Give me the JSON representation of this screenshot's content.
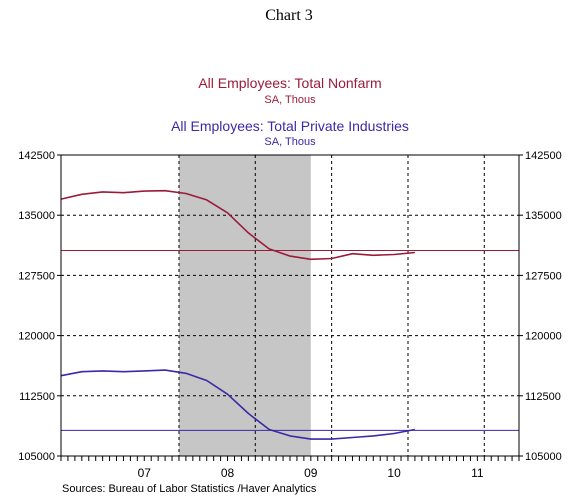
{
  "page_title": "Chart 3",
  "sources_text": "Sources:  Bureau of Labor Statistics /Haver Analytics",
  "chart_data": {
    "type": "line",
    "series": [
      {
        "name": "All Employees: Total Nonfarm",
        "units": "SA, Thous",
        "color": "#9b1c3a",
        "reference_level": 130600,
        "points": [
          [
            2006.5,
            137000
          ],
          [
            2006.75,
            137600
          ],
          [
            2007.0,
            137900
          ],
          [
            2007.25,
            137800
          ],
          [
            2007.5,
            138000
          ],
          [
            2007.75,
            138050
          ],
          [
            2008.0,
            137700
          ],
          [
            2008.25,
            136900
          ],
          [
            2008.5,
            135300
          ],
          [
            2008.75,
            132800
          ],
          [
            2009.0,
            130800
          ],
          [
            2009.25,
            129900
          ],
          [
            2009.5,
            129500
          ],
          [
            2009.75,
            129600
          ],
          [
            2010.0,
            130200
          ],
          [
            2010.25,
            130000
          ],
          [
            2010.5,
            130100
          ],
          [
            2010.75,
            130350
          ]
        ]
      },
      {
        "name": "All Employees: Total Private Industries",
        "units": "SA, Thous",
        "color": "#3b2aa6",
        "reference_level": 108200,
        "points": [
          [
            2006.5,
            115000
          ],
          [
            2006.75,
            115500
          ],
          [
            2007.0,
            115600
          ],
          [
            2007.25,
            115500
          ],
          [
            2007.5,
            115600
          ],
          [
            2007.75,
            115700
          ],
          [
            2008.0,
            115300
          ],
          [
            2008.25,
            114400
          ],
          [
            2008.5,
            112700
          ],
          [
            2008.75,
            110300
          ],
          [
            2009.0,
            108300
          ],
          [
            2009.25,
            107500
          ],
          [
            2009.5,
            107100
          ],
          [
            2009.75,
            107100
          ],
          [
            2010.0,
            107300
          ],
          [
            2010.25,
            107500
          ],
          [
            2010.5,
            107800
          ],
          [
            2010.75,
            108300
          ]
        ]
      }
    ],
    "recession_shading": {
      "start": 2007.917,
      "end": 2009.5,
      "color": "#c6c6c6"
    },
    "x_range": [
      2006.5,
      2012.0
    ],
    "ylim": [
      105000,
      142500
    ],
    "y_ticks": [
      142500,
      135000,
      127500,
      120000,
      112500,
      105000
    ],
    "y_tick_labels": [
      "142500",
      "135000",
      "127500",
      "120000",
      "112500",
      "105000"
    ],
    "x_tick_labels": [
      {
        "label": "07",
        "x": 2007.5
      },
      {
        "label": "08",
        "x": 2008.5
      },
      {
        "label": "09",
        "x": 2009.5
      },
      {
        "label": "10",
        "x": 2010.5
      },
      {
        "label": "11",
        "x": 2011.5
      }
    ],
    "x_gridlines": [
      2007.917,
      2008.833,
      2009.75,
      2010.667,
      2011.583
    ],
    "y_gridlines": [
      142500,
      135000,
      127500,
      120000,
      112500
    ],
    "grid": true,
    "grid_style": "dashed"
  }
}
